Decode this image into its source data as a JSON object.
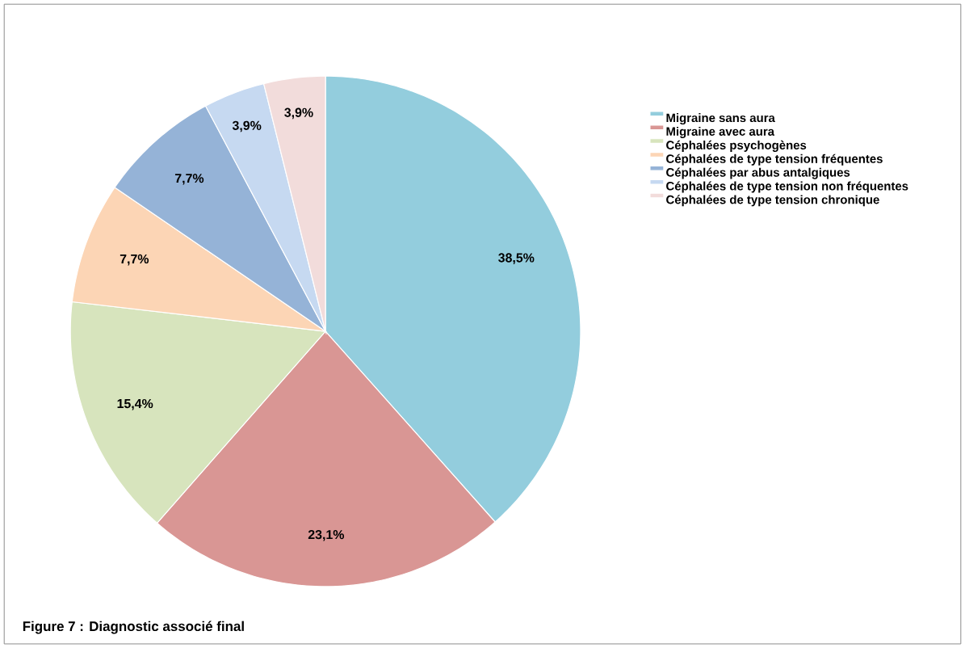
{
  "chart_data": {
    "type": "pie",
    "categories": [
      "Migraine sans aura",
      "Migraine avec aura",
      "Céphalées psychogènes",
      "Céphalées de type tension fréquentes",
      "Céphalées par abus antalgiques",
      "Céphalées de type tension non fréquentes",
      "Céphalées de type tension chronique"
    ],
    "values": [
      38.5,
      23.1,
      15.4,
      7.7,
      7.7,
      3.9,
      3.9
    ],
    "colors": [
      "#93cddd",
      "#d99694",
      "#d7e4bd",
      "#fcd5b5",
      "#95b3d7",
      "#c6d9f1",
      "#f2dcdb"
    ],
    "value_labels": [
      "38,5%",
      "23,1%",
      "15,4%",
      "7,7%",
      "7,7%",
      "3,9%",
      "3,9%"
    ],
    "legend": "right",
    "annotations": [
      "Figure 7 : Diagnostic associé final"
    ]
  }
}
